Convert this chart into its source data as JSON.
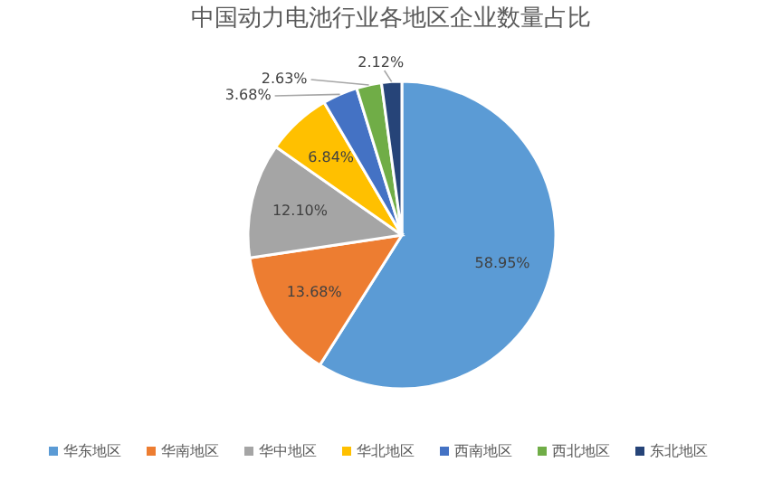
{
  "chart_data": {
    "type": "pie",
    "title": "中国动力电池行业各地区企业数量占比",
    "categories": [
      "华东地区",
      "华南地区",
      "华中地区",
      "华北地区",
      "西南地区",
      "西北地区",
      "东北地区"
    ],
    "values": [
      58.95,
      13.68,
      12.1,
      6.84,
      3.68,
      2.63,
      2.12
    ],
    "colors": [
      "#5b9bd5",
      "#ed7d31",
      "#a5a5a5",
      "#ffc000",
      "#4472c4",
      "#70ad47",
      "#264478"
    ],
    "value_labels": [
      "58.95%",
      "13.68%",
      "12.10%",
      "6.84%",
      "3.68%",
      "2.63%",
      "2.12%"
    ],
    "legend": "bottom"
  }
}
